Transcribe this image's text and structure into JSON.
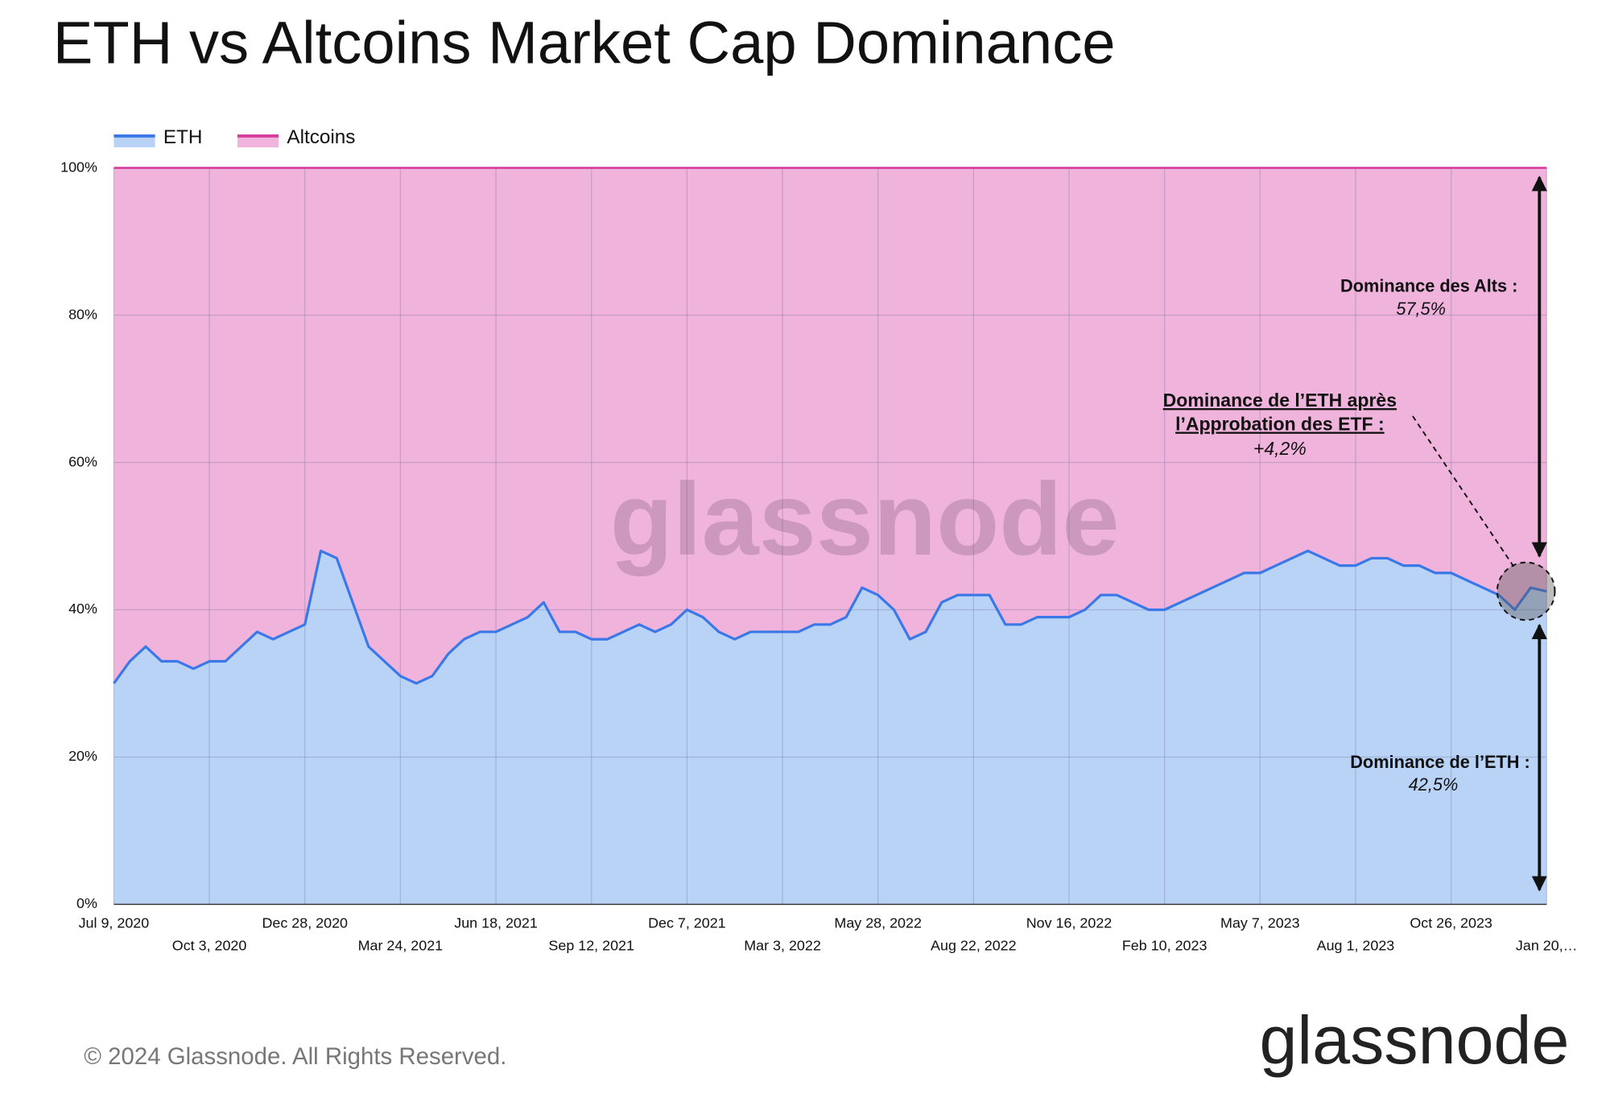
{
  "chart_data": {
    "type": "area",
    "stacked": true,
    "title": "ETH vs Altcoins Market Cap Dominance",
    "categories": [
      "Jul 9, 2020",
      null,
      null,
      null,
      null,
      null,
      "Oct 3, 2020",
      null,
      null,
      null,
      null,
      null,
      "Dec 28, 2020",
      null,
      null,
      null,
      null,
      null,
      "Mar 24, 2021",
      null,
      null,
      null,
      null,
      null,
      "Jun 18, 2021",
      null,
      null,
      null,
      null,
      null,
      "Sep 12, 2021",
      null,
      null,
      null,
      null,
      null,
      "Dec 7, 2021",
      null,
      null,
      null,
      null,
      null,
      "Mar 3, 2022",
      null,
      null,
      null,
      null,
      null,
      "May 28, 2022",
      null,
      null,
      null,
      null,
      null,
      "Aug 22, 2022",
      null,
      null,
      null,
      null,
      null,
      "Nov 16, 2022",
      null,
      null,
      null,
      null,
      null,
      "Feb 10, 2023",
      null,
      null,
      null,
      null,
      null,
      "May 7, 2023",
      null,
      null,
      null,
      null,
      null,
      "Aug 1, 2023",
      null,
      null,
      null,
      null,
      null,
      "Oct 26, 2023",
      null,
      null,
      null,
      null,
      null,
      "Jan 20,…"
    ],
    "series": [
      {
        "name": "ETH",
        "color": "#3b78e7",
        "fill": "#b9d3f6",
        "values": [
          30,
          33,
          35,
          33,
          33,
          32,
          33,
          33,
          35,
          37,
          36,
          37,
          38,
          48,
          47,
          41,
          35,
          33,
          31,
          30,
          31,
          34,
          36,
          37,
          37,
          38,
          39,
          41,
          37,
          37,
          36,
          36,
          37,
          38,
          37,
          38,
          40,
          39,
          37,
          36,
          37,
          37,
          37,
          37,
          38,
          38,
          39,
          43,
          42,
          40,
          36,
          37,
          41,
          42,
          42,
          42,
          38,
          38,
          39,
          39,
          39,
          40,
          42,
          42,
          41,
          40,
          40,
          41,
          42,
          43,
          44,
          45,
          45,
          46,
          47,
          48,
          47,
          46,
          46,
          47,
          47,
          46,
          46,
          45,
          45,
          44,
          43,
          42,
          40,
          43,
          42.5
        ]
      },
      {
        "name": "Altcoins",
        "color": "#d63c9c",
        "fill": "#efb3dc",
        "values": [
          70,
          67,
          65,
          67,
          67,
          68,
          67,
          67,
          65,
          63,
          64,
          63,
          62,
          52,
          53,
          59,
          65,
          67,
          69,
          70,
          69,
          66,
          64,
          63,
          63,
          62,
          61,
          59,
          63,
          63,
          64,
          64,
          63,
          62,
          63,
          62,
          60,
          61,
          63,
          64,
          63,
          63,
          63,
          63,
          62,
          62,
          61,
          57,
          58,
          60,
          64,
          63,
          59,
          58,
          58,
          58,
          62,
          62,
          61,
          61,
          61,
          60,
          58,
          58,
          59,
          60,
          60,
          59,
          58,
          57,
          56,
          55,
          55,
          54,
          53,
          52,
          53,
          54,
          54,
          53,
          53,
          54,
          54,
          55,
          55,
          56,
          57,
          58,
          60,
          57,
          57.5
        ]
      }
    ],
    "ylim": [
      0,
      100
    ],
    "yticks": [
      {
        "value": 0,
        "label": "0%"
      },
      {
        "value": 20,
        "label": "20%"
      },
      {
        "value": 40,
        "label": "40%"
      },
      {
        "value": 60,
        "label": "60%"
      },
      {
        "value": 80,
        "label": "80%"
      },
      {
        "value": 100,
        "label": "100%"
      }
    ],
    "grid": true,
    "legend": "top-left",
    "annotations": {
      "alts_label": "Dominance des Alts :",
      "alts_value": "57,5%",
      "etf_label_1": "Dominance de l’ETH après",
      "etf_label_2": "l’Approbation des ETF :",
      "etf_value": "+4,2%",
      "eth_label": "Dominance de l’ETH :",
      "eth_value": "42,5%"
    },
    "watermark": "glassnode",
    "footer": "© 2024 Glassnode. All Rights Reserved.",
    "logo": "glassnode"
  }
}
